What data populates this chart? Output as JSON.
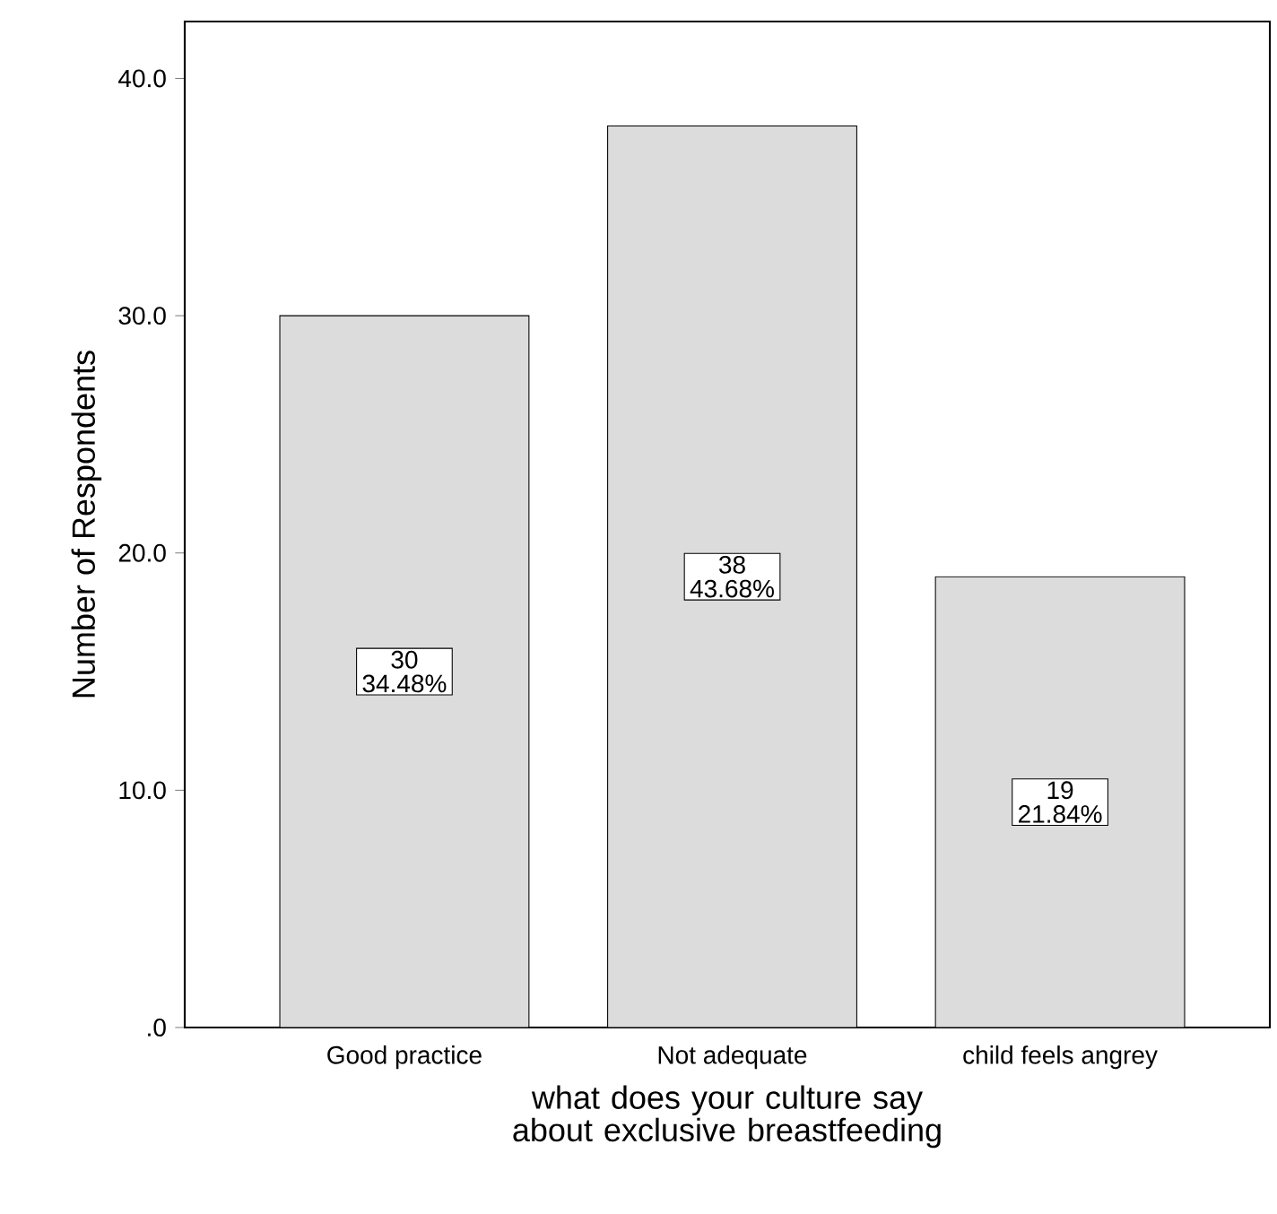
{
  "chart_data": {
    "type": "bar",
    "xlabel": "what does your culture say about exclusive breastfeeding",
    "ylabel": "Number of Respondents",
    "categories": [
      "Good practice",
      "Not adequate",
      "child feels angrey"
    ],
    "values": [
      30,
      38,
      19
    ],
    "color": "#dcdcdc",
    "value_labels": [
      "30 34.48%",
      "38 43.68%",
      "19 21.84%"
    ],
    "ylim": [
      0,
      42.4
    ],
    "yticks": [
      {
        "value": 0,
        "label": ".0"
      },
      {
        "value": 10,
        "label": "10.0"
      },
      {
        "value": 20,
        "label": "20.0"
      },
      {
        "value": 30,
        "label": "30.0"
      },
      {
        "value": 40,
        "label": "40.0"
      }
    ]
  }
}
